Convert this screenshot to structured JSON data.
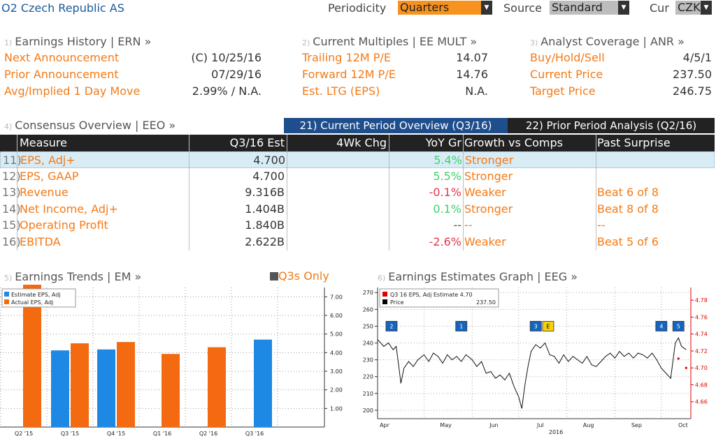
{
  "header": {
    "title": "O2 Czech Republic AS",
    "periodicity_label": "Periodicity",
    "periodicity_value": "Quarters",
    "source_label": "Source",
    "source_value": "Standard",
    "currency_label": "Cur",
    "currency_value": "CZK"
  },
  "earnings_history": {
    "num": "1)",
    "title": "Earnings History | ERN »",
    "rows": [
      {
        "label": "Next Announcement",
        "value": "(C)  10/25/16"
      },
      {
        "label": "Prior Announcement",
        "value": "07/29/16"
      },
      {
        "label": "Avg/Implied 1 Day Move",
        "value": "2.99% / N.A."
      }
    ]
  },
  "current_multiples": {
    "num": "2)",
    "title": "Current Multiples | EE MULT »",
    "rows": [
      {
        "label": "Trailing 12M P/E",
        "value": "14.07"
      },
      {
        "label": "Forward 12M P/E",
        "value": "14.76"
      },
      {
        "label": "Est. LTG (EPS)",
        "value": "N.A."
      }
    ]
  },
  "analyst_coverage": {
    "num": "3)",
    "title": "Analyst Coverage | ANR »",
    "rows": [
      {
        "label": "Buy/Hold/Sell",
        "value": "4/5/1"
      },
      {
        "label": "Current Price",
        "value": "237.50"
      },
      {
        "label": "Target Price",
        "value": "246.75"
      }
    ]
  },
  "consensus": {
    "num": "4)",
    "title": "Consensus Overview | EEO »",
    "tab_current": "21) Current Period Overview (Q3/16)",
    "tab_prior": "22) Prior Period Analysis (Q2/16)",
    "columns": [
      "Measure",
      "Q3/16 Est",
      "4Wk Chg",
      "YoY Gr",
      "Growth vs Comps",
      "Past Surprise"
    ],
    "rows": [
      {
        "n": "11)",
        "measure": "EPS, Adj+",
        "est": "4.700",
        "chg": "",
        "yoy": "5.4%",
        "yoy_color": "#3ed16b",
        "growth": "Stronger",
        "surprise": ""
      },
      {
        "n": "12)",
        "measure": "EPS, GAAP",
        "est": "4.700",
        "chg": "",
        "yoy": "5.5%",
        "yoy_color": "#3ed16b",
        "growth": "Stronger",
        "surprise": ""
      },
      {
        "n": "13)",
        "measure": "Revenue",
        "est": "9.316B",
        "chg": "",
        "yoy": "-0.1%",
        "yoy_color": "#e2374b",
        "growth": "Weaker",
        "surprise": "Beat 6 of 8"
      },
      {
        "n": "14)",
        "measure": "Net Income, Adj+",
        "est": "1.404B",
        "chg": "",
        "yoy": "0.1%",
        "yoy_color": "#3ed16b",
        "growth": "Stronger",
        "surprise": "Beat 8 of 8"
      },
      {
        "n": "15)",
        "measure": "Operating Profit",
        "est": "1.840B",
        "chg": "",
        "yoy": "--",
        "yoy_color": "#555555",
        "growth": "--",
        "surprise": "--"
      },
      {
        "n": "16)",
        "measure": "EBITDA",
        "est": "2.622B",
        "chg": "",
        "yoy": "-2.6%",
        "yoy_color": "#e2374b",
        "growth": "Weaker",
        "surprise": "Beat 5 of 6"
      }
    ]
  },
  "earnings_trends": {
    "num": "5)",
    "title": "Earnings Trends | EM »",
    "toggle_label": "Q3s Only"
  },
  "earnings_graph": {
    "num": "6)",
    "title": "Earnings Estimates Graph | EEG »"
  },
  "chart_data": [
    {
      "type": "bar",
      "categories": [
        "Q2 '15",
        "Q3 '15",
        "Q4 '15",
        "Q1 '16",
        "Q2 '16",
        "Q3 '16"
      ],
      "series": [
        {
          "name": "Estimate EPS, Adj",
          "color": "#1e88e5",
          "values": [
            null,
            4.12,
            4.17,
            null,
            null,
            4.7
          ]
        },
        {
          "name": "Actual EPS, Adj",
          "color": "#f36a10",
          "values": [
            7.85,
            4.5,
            4.57,
            3.93,
            4.29,
            null
          ]
        }
      ],
      "ylim": [
        0,
        7.5
      ],
      "yticks": [
        "1.00",
        "2.00",
        "3.00",
        "4.00",
        "5.00",
        "6.00",
        "7.00"
      ],
      "legend": "top-left",
      "grid": true
    },
    {
      "type": "line",
      "legend_items": [
        {
          "label": "Q3 16 EPS, Adj Estimate 4.70",
          "value": "",
          "color": "#e00000"
        },
        {
          "label": "Price",
          "value": "237.50",
          "color": "#000000"
        }
      ],
      "x_ticks": [
        "Apr",
        "May",
        "Jun",
        "Jul",
        "Aug",
        "Sep",
        "Oct"
      ],
      "x_year": "2016",
      "left_ticks": [
        "200",
        "210",
        "220",
        "230",
        "240",
        "250",
        "260",
        "270"
      ],
      "left_ylim": [
        195,
        273
      ],
      "right_ticks": [
        "4.66",
        "4.68",
        "4.70",
        "4.72",
        "4.74",
        "4.76",
        "4.78"
      ],
      "right_ylim": [
        4.64,
        4.795
      ],
      "price_series": [
        [
          "Apr 1",
          242
        ],
        [
          "Apr 5",
          238
        ],
        [
          "Apr 8",
          240
        ],
        [
          "Apr 11",
          236
        ],
        [
          "Apr 13",
          238
        ],
        [
          "Apr 15",
          224
        ],
        [
          "Apr 16",
          216
        ],
        [
          "Apr 18",
          225
        ],
        [
          "Apr 21",
          229
        ],
        [
          "Apr 24",
          226
        ],
        [
          "Apr 27",
          230
        ],
        [
          "May 1",
          233
        ],
        [
          "May 4",
          229
        ],
        [
          "May 7",
          234
        ],
        [
          "May 10",
          232
        ],
        [
          "May 13",
          228
        ],
        [
          "May 16",
          233
        ],
        [
          "May 19",
          230
        ],
        [
          "May 22",
          232
        ],
        [
          "May 25",
          229
        ],
        [
          "May 28",
          233
        ],
        [
          "Jun 1",
          230
        ],
        [
          "Jun 4",
          226
        ],
        [
          "Jun 7",
          229
        ],
        [
          "Jun 10",
          222
        ],
        [
          "Jun 13",
          223
        ],
        [
          "Jun 16",
          219
        ],
        [
          "Jun 19",
          221
        ],
        [
          "Jun 22",
          218
        ],
        [
          "Jun 25",
          222
        ],
        [
          "Jun 28",
          214
        ],
        [
          "Jul 1",
          208
        ],
        [
          "Jul 3",
          201
        ],
        [
          "Jul 5",
          215
        ],
        [
          "Jul 7",
          226
        ],
        [
          "Jul 9",
          235
        ],
        [
          "Jul 12",
          239
        ],
        [
          "Jul 15",
          237
        ],
        [
          "Jul 18",
          240
        ],
        [
          "Jul 21",
          233
        ],
        [
          "Jul 24",
          232
        ],
        [
          "Jul 27",
          228
        ],
        [
          "Jul 30",
          233
        ],
        [
          "Aug 2",
          229
        ],
        [
          "Aug 5",
          232
        ],
        [
          "Aug 8",
          230
        ],
        [
          "Aug 11",
          228
        ],
        [
          "Aug 14",
          232
        ],
        [
          "Aug 17",
          227
        ],
        [
          "Aug 20",
          226
        ],
        [
          "Aug 23",
          229
        ],
        [
          "Aug 26",
          232
        ],
        [
          "Aug 29",
          234
        ],
        [
          "Sep 1",
          231
        ],
        [
          "Sep 4",
          235
        ],
        [
          "Sep 7",
          232
        ],
        [
          "Sep 10",
          234
        ],
        [
          "Sep 13",
          231
        ],
        [
          "Sep 16",
          234
        ],
        [
          "Sep 19",
          233
        ],
        [
          "Sep 22",
          231
        ],
        [
          "Sep 25",
          234
        ],
        [
          "Sep 28",
          230
        ],
        [
          "Oct 1",
          225
        ],
        [
          "Oct 4",
          222
        ],
        [
          "Oct 7",
          219
        ],
        [
          "Oct 10",
          240
        ],
        [
          "Oct 12",
          243
        ],
        [
          "Oct 14",
          238
        ],
        [
          "Oct 17",
          236
        ]
      ],
      "estimate_series": [
        [
          "Oct 12",
          4.711
        ],
        [
          "Oct 17",
          4.7
        ]
      ],
      "event_markers": [
        {
          "label": "2",
          "date": "Apr 10",
          "color": "#1565c0"
        },
        {
          "label": "1",
          "date": "May 25",
          "color": "#1565c0"
        },
        {
          "label": "3",
          "date": "Jul 12",
          "color": "#1565c0"
        },
        {
          "label": "E",
          "date": "Jul 20",
          "color": "#f5d10a"
        },
        {
          "label": "4",
          "date": "Oct 1",
          "color": "#1565c0"
        },
        {
          "label": "5",
          "date": "Oct 12",
          "color": "#1565c0"
        }
      ]
    }
  ]
}
